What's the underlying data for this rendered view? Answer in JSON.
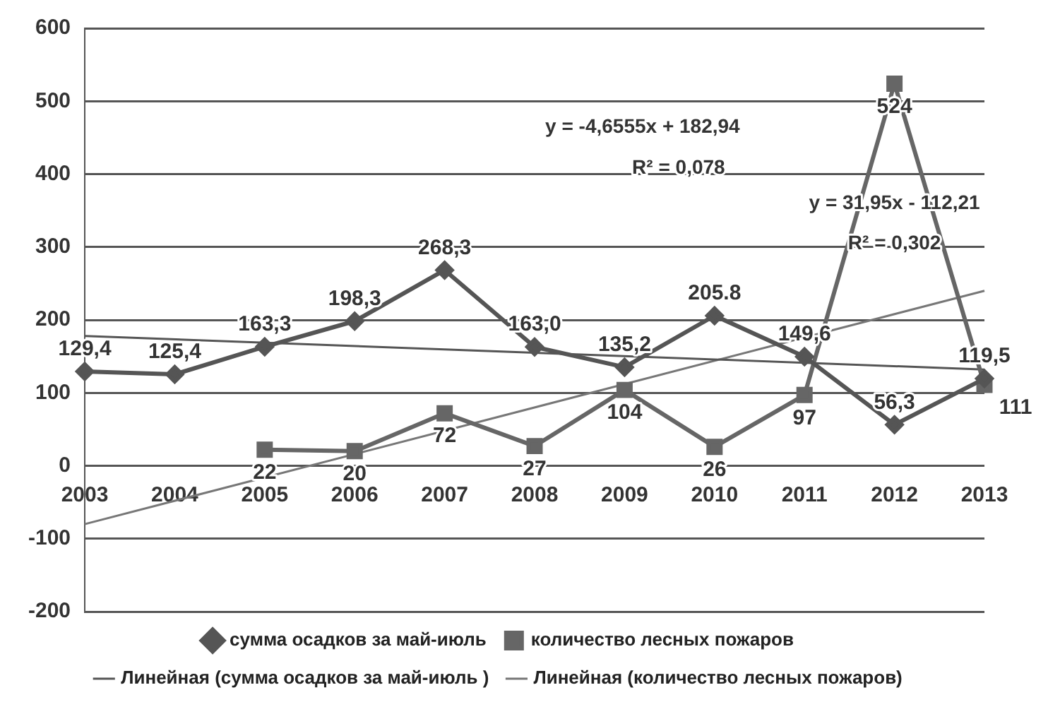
{
  "chart_data": {
    "type": "line",
    "categories": [
      "2003",
      "2004",
      "2005",
      "2006",
      "2007",
      "2008",
      "2009",
      "2010",
      "2011",
      "2012",
      "2013"
    ],
    "series": [
      {
        "name": "сумма осадков за май-июль",
        "color": "#555555",
        "marker": "diamond",
        "values": [
          129.4,
          125.4,
          163.3,
          198.3,
          268.3,
          163.0,
          135.2,
          205.8,
          149.6,
          56.3,
          119.5
        ],
        "value_labels": [
          "129,4",
          "125,4",
          "163,3",
          "198,3",
          "268,3",
          "163,0",
          "135,2",
          "205.8",
          "149,6",
          "56,3",
          "119,5"
        ]
      },
      {
        "name": "количество лесных пожаров",
        "color": "#666666",
        "marker": "square",
        "values": [
          null,
          null,
          22,
          20,
          72,
          27,
          104,
          26,
          97,
          524,
          111
        ],
        "value_labels": [
          null,
          null,
          "22",
          "20",
          "72",
          "27",
          "104",
          "26",
          "97",
          "524",
          "111"
        ]
      },
      {
        "name": "Линейная (сумма осадков за май-июль )",
        "color": "#555555",
        "marker": "none",
        "values": [
          178,
          null,
          null,
          null,
          null,
          null,
          null,
          null,
          null,
          null,
          132
        ]
      },
      {
        "name": "Линейная (количество лесных пожаров)",
        "color": "#777777",
        "marker": "none",
        "values": [
          -80,
          null,
          null,
          null,
          null,
          null,
          null,
          null,
          null,
          null,
          240
        ]
      }
    ],
    "ylim": [
      -200,
      600
    ],
    "yticks": [
      -200,
      -100,
      0,
      100,
      200,
      300,
      400,
      500,
      600
    ],
    "grid": "y",
    "legend": "bottom",
    "annotations": [
      "y = -4,6555x + 182,94",
      "R² = 0,078",
      "y = 31,95x - 112,21",
      "R² = 0,302"
    ]
  }
}
